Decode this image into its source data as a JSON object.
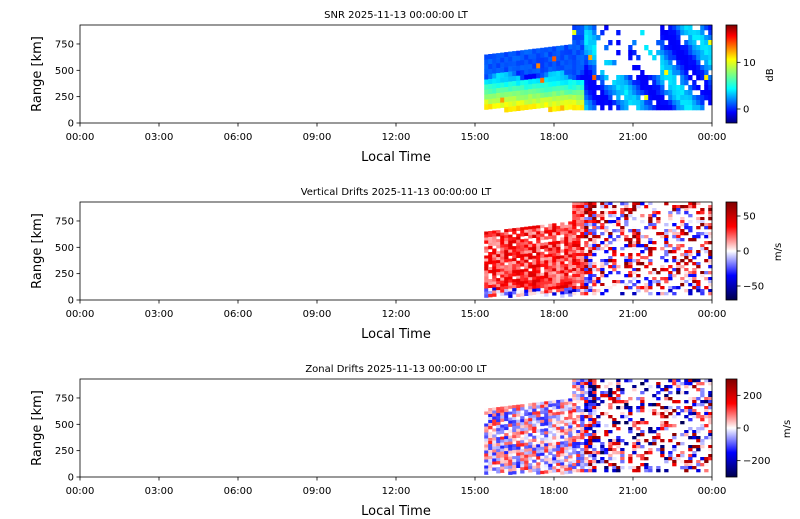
{
  "chart_data": [
    {
      "type": "heatmap",
      "title": "SNR 2025-11-13 00:00:00 LT",
      "xlabel": "Local Time",
      "ylabel": "Range [km]",
      "xticks": [
        "00:00",
        "03:00",
        "06:00",
        "09:00",
        "12:00",
        "15:00",
        "18:00",
        "21:00",
        "00:00"
      ],
      "xlim": [
        0,
        24
      ],
      "yticks": [
        "0",
        "250",
        "500",
        "750"
      ],
      "ylim": [
        0,
        930
      ],
      "colorbar": {
        "label": "dB",
        "ticks": [
          "0",
          "10"
        ],
        "range": [
          -3,
          18
        ],
        "colormap": "jet"
      },
      "data_extent": {
        "start_hour": 15.35,
        "end_hour": 24,
        "min_range_km": 150,
        "max_range_km": 930
      }
    },
    {
      "type": "heatmap",
      "title": "Vertical Drifts 2025-11-13 00:00:00 LT",
      "xlabel": "Local Time",
      "ylabel": "Range [km]",
      "xticks": [
        "00:00",
        "03:00",
        "06:00",
        "09:00",
        "12:00",
        "15:00",
        "18:00",
        "21:00",
        "00:00"
      ],
      "xlim": [
        0,
        24
      ],
      "yticks": [
        "0",
        "250",
        "500",
        "750"
      ],
      "ylim": [
        0,
        930
      ],
      "colorbar": {
        "label": "m/s",
        "ticks": [
          "50",
          "0",
          "−50"
        ],
        "range": [
          -70,
          70
        ],
        "colormap": "seismic"
      },
      "data_extent": {
        "start_hour": 15.35,
        "end_hour": 24,
        "min_range_km": 50,
        "max_range_km": 930
      }
    },
    {
      "type": "heatmap",
      "title": "Zonal Drifts 2025-11-13 00:00:00 LT",
      "xlabel": "Local Time",
      "ylabel": "Range [km]",
      "xticks": [
        "00:00",
        "03:00",
        "06:00",
        "09:00",
        "12:00",
        "15:00",
        "18:00",
        "21:00",
        "00:00"
      ],
      "xlim": [
        0,
        24
      ],
      "yticks": [
        "0",
        "250",
        "500",
        "750"
      ],
      "ylim": [
        0,
        930
      ],
      "colorbar": {
        "label": "m/s",
        "ticks": [
          "200",
          "0",
          "−200"
        ],
        "range": [
          -300,
          300
        ],
        "colormap": "seismic"
      },
      "data_extent": {
        "start_hour": 15.35,
        "end_hour": 24,
        "min_range_km": 50,
        "max_range_km": 930
      }
    }
  ]
}
